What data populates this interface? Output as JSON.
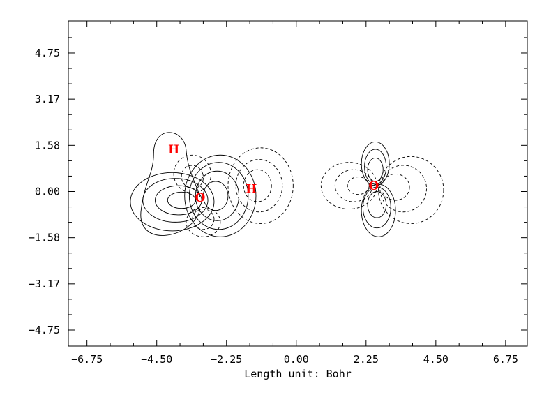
{
  "chart_data": {
    "type": "contour",
    "xlabel": "Length unit: Bohr",
    "ylabel": "",
    "title": "",
    "xlim": [
      -7.35,
      7.45
    ],
    "ylim": [
      -5.3,
      5.85
    ],
    "xticks": [
      -6.75,
      -4.5,
      -2.25,
      0.0,
      2.25,
      4.5,
      6.75
    ],
    "xtick_labels": [
      "−6.75",
      "−4.50",
      "−2.25",
      "0.00",
      "2.25",
      "4.50",
      "6.75"
    ],
    "yticks": [
      4.75,
      3.17,
      1.58,
      0.0,
      -1.58,
      -3.17,
      -4.75
    ],
    "ytick_labels": [
      "4.75",
      "3.17",
      "1.58",
      "0.00",
      "−1.58",
      "−3.17",
      "−4.75"
    ],
    "grid": false,
    "atoms": [
      {
        "label": "O",
        "x": -3.1,
        "y": -0.2
      },
      {
        "label": "H",
        "x": -3.95,
        "y": 1.45
      },
      {
        "label": "H",
        "x": -1.45,
        "y": 0.1
      },
      {
        "label": "O",
        "x": 2.5,
        "y": 0.2
      }
    ],
    "positive_contour_style": "solid",
    "negative_contour_style": "dashed",
    "atom_label_color": "#ff0000"
  }
}
